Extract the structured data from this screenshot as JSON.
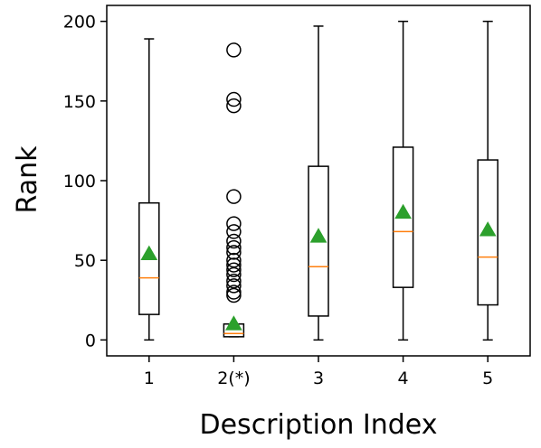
{
  "chart_data": {
    "type": "box",
    "xlabel": "Description Index",
    "ylabel": "Rank",
    "categories": [
      "1",
      "2(*)",
      "3",
      "4",
      "5"
    ],
    "ylim": [
      -10,
      210
    ],
    "yticks": [
      0,
      50,
      100,
      150,
      200
    ],
    "grid": false,
    "colors": {
      "median": "#ff7f0e",
      "mean": "#2ca02c",
      "box": "#000000"
    },
    "boxes": [
      {
        "category": "1",
        "whisker_low": 0,
        "q1": 16,
        "median": 39,
        "q3": 86,
        "whisker_high": 189,
        "mean": 54,
        "outliers": []
      },
      {
        "category": "2(*)",
        "whisker_low": 2,
        "q1": 2,
        "median": 4,
        "q3": 10,
        "whisker_high": 10,
        "mean": 10,
        "outliers": [
          28,
          30,
          34,
          37,
          41,
          44,
          47,
          50,
          55,
          58,
          62,
          68,
          73,
          90,
          147,
          151,
          182
        ]
      },
      {
        "category": "3",
        "whisker_low": 0,
        "q1": 15,
        "median": 46,
        "q3": 109,
        "whisker_high": 197,
        "mean": 65,
        "outliers": []
      },
      {
        "category": "4",
        "whisker_low": 0,
        "q1": 33,
        "median": 68,
        "q3": 121,
        "whisker_high": 200,
        "mean": 80,
        "outliers": []
      },
      {
        "category": "5",
        "whisker_low": 0,
        "q1": 22,
        "median": 52,
        "q3": 113,
        "whisker_high": 200,
        "mean": 69,
        "outliers": []
      }
    ]
  }
}
